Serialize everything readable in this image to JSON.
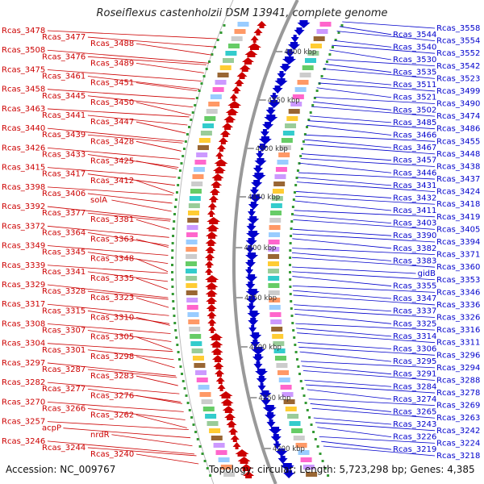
{
  "header": {
    "title": "Roseiflexus castenholzii DSM 13941, complete genome"
  },
  "footer": {
    "accession": "Accession: NC_009767",
    "info": "Topology: circular; Length: 5,723,298 bp; Genes: 4,385"
  },
  "colors": {
    "forward": "#cc0000",
    "reverse": "#0000cc",
    "backbone": "#999999"
  },
  "scale_labels": [
    "4600 kbp",
    "4550 kbp",
    "4500 kbp",
    "4450 kbp",
    "4400 kbp",
    "4350 kbp",
    "4300 kbp",
    "4250 kbp",
    "4200 kbp"
  ],
  "left_genes": [
    "Rcas_3478",
    "Rcas_3477",
    "Rcas_3488",
    "Rcas_3508",
    "Rcas_3476",
    "Rcas_3489",
    "Rcas_3475",
    "Rcas_3461",
    "Rcas_3451",
    "Rcas_3458",
    "Rcas_3445",
    "Rcas_3450",
    "Rcas_3463",
    "Rcas_3441",
    "Rcas_3447",
    "Rcas_3440",
    "Rcas_3439",
    "Rcas_3428",
    "Rcas_3426",
    "Rcas_3433",
    "Rcas_3425",
    "Rcas_3415",
    "Rcas_3417",
    "Rcas_3412",
    "Rcas_3398",
    "Rcas_3406",
    "solA",
    "Rcas_3392",
    "Rcas_3377",
    "Rcas_3381",
    "Rcas_3372",
    "Rcas_3364",
    "Rcas_3363",
    "Rcas_3349",
    "Rcas_3345",
    "Rcas_3348",
    "Rcas_3339",
    "Rcas_3341",
    "Rcas_3335",
    "Rcas_3329",
    "Rcas_3328",
    "Rcas_3323",
    "Rcas_3317",
    "Rcas_3315",
    "Rcas_3310",
    "Rcas_3308",
    "Rcas_3307",
    "Rcas_3305",
    "Rcas_3304",
    "Rcas_3301",
    "Rcas_3298",
    "Rcas_3297",
    "Rcas_3287",
    "Rcas_3283",
    "Rcas_3282",
    "Rcas_3277",
    "Rcas_3276",
    "Rcas_3270",
    "Rcas_3266",
    "Rcas_3262",
    "Rcas_3257",
    "acpP",
    "nrdR",
    "Rcas_3246",
    "Rcas_3244",
    "Rcas_3240"
  ],
  "right_genes": [
    "Rcas_3558",
    "Rcas_3544",
    "Rcas_3554",
    "Rcas_3540",
    "Rcas_3552",
    "Rcas_3530",
    "Rcas_3542",
    "Rcas_3535",
    "Rcas_3523",
    "Rcas_3511",
    "Rcas_3499",
    "Rcas_3521",
    "Rcas_3490",
    "Rcas_3502",
    "Rcas_3474",
    "Rcas_3485",
    "Rcas_3486",
    "Rcas_3466",
    "Rcas_3455",
    "Rcas_3467",
    "Rcas_3448",
    "Rcas_3457",
    "Rcas_3438",
    "Rcas_3446",
    "Rcas_3437",
    "Rcas_3431",
    "Rcas_3424",
    "Rcas_3432",
    "Rcas_3418",
    "Rcas_3411",
    "Rcas_3419",
    "Rcas_3403",
    "Rcas_3405",
    "Rcas_3390",
    "Rcas_3394",
    "Rcas_3382",
    "Rcas_3371",
    "Rcas_3383",
    "Rcas_3360",
    "gidB",
    "Rcas_3353",
    "Rcas_3355",
    "Rcas_3346",
    "Rcas_3347",
    "Rcas_3336",
    "Rcas_3337",
    "Rcas_3326",
    "Rcas_3325",
    "Rcas_3316",
    "Rcas_3314",
    "Rcas_3311",
    "Rcas_3306",
    "Rcas_3296",
    "Rcas_3295",
    "Rcas_3294",
    "Rcas_3291",
    "Rcas_3288",
    "Rcas_3284",
    "Rcas_3278",
    "Rcas_3274",
    "Rcas_3269",
    "Rcas_3265",
    "Rcas_3263",
    "Rcas_3243",
    "Rcas_3242",
    "Rcas_3226",
    "Rcas_3224",
    "Rcas_3219",
    "Rcas_3218"
  ]
}
